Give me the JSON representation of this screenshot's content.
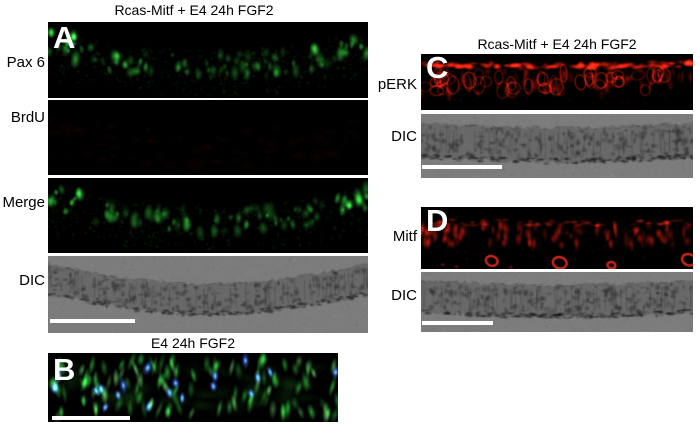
{
  "titles": {
    "column_a": "Rcas-Mitf + E4 24h FGF2",
    "panel_b": "E4 24h FGF2",
    "column_c": "Rcas-Mitf + E4 24h FGF2"
  },
  "panel_letters": {
    "a": "A",
    "b": "B",
    "c": "C",
    "d": "D"
  },
  "row_labels": {
    "a": [
      "Pax 6",
      "BrdU",
      "Merge",
      "DIC"
    ],
    "c": [
      "pERK",
      "DIC"
    ],
    "d": [
      "Mitf",
      "DIC"
    ]
  },
  "stains": {
    "pax6": "green",
    "brdu": "faint-red",
    "merge": "green",
    "dic_a": "dic-valley",
    "b": "green-blue",
    "perk": "red-top",
    "dic_c": "dic-flat",
    "mitf": "red-cells",
    "dic_d": "dic-flat"
  },
  "colors": {
    "fluor_green": "#35d23e",
    "fluor_red": "#e02012",
    "nuclei_blue": "#3e74ff",
    "dic_gray": "#7c7c7c",
    "scalebar": "#ffffff",
    "panel_background": "#000000",
    "page_background": "#ffffff",
    "text": "#000000"
  }
}
